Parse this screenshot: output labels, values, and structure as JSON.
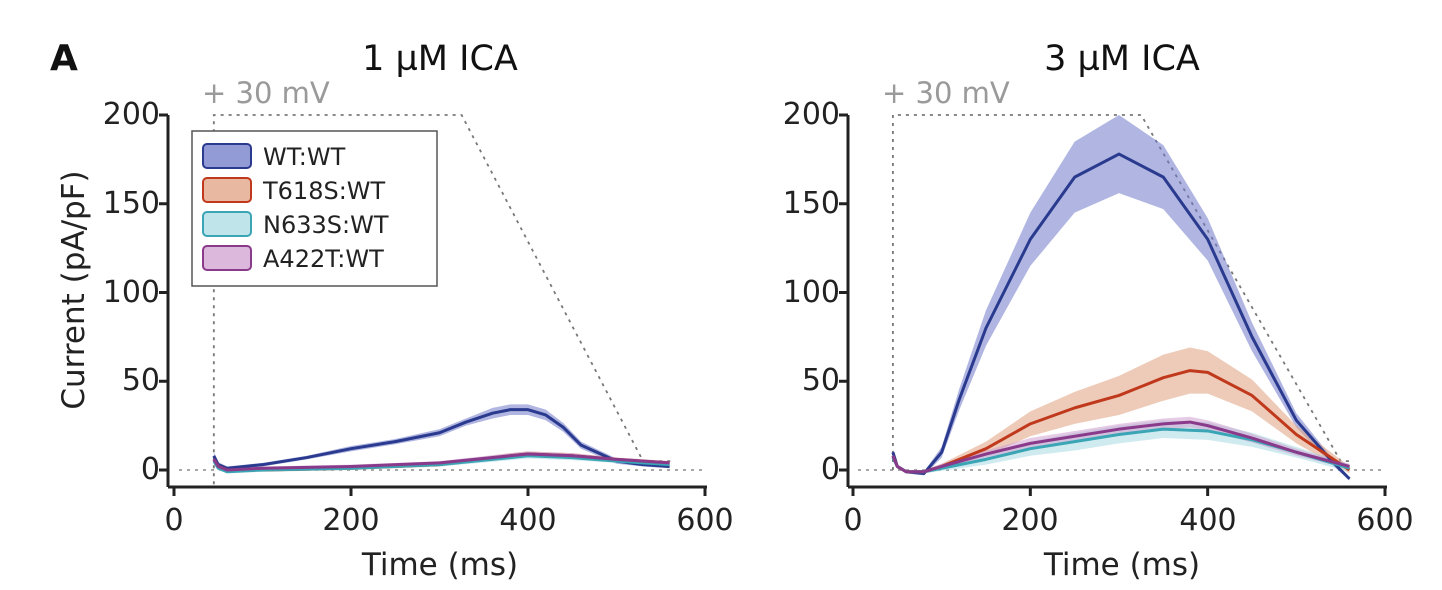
{
  "panel_label": "A",
  "chart_data": [
    {
      "type": "line",
      "title": "1 µM ICA",
      "xlabel": "Time (ms)",
      "ylabel": "Current (pA/pF)",
      "xlim": [
        0,
        600
      ],
      "ylim": [
        -8,
        200
      ],
      "xticks": [
        "0",
        "200",
        "400",
        "600"
      ],
      "yticks": [
        "0",
        "50",
        "100",
        "150",
        "200"
      ],
      "protocol_label": "+ 30 mV",
      "legend": {
        "entries": [
          "WT:WT",
          "T618S:WT",
          "N633S:WT",
          "A422T:WT"
        ],
        "position": "top-left"
      },
      "series": [
        {
          "name": "WT:WT",
          "color": "#2a3a8f",
          "fill": "#6f7ac8",
          "x": [
            45,
            50,
            60,
            80,
            100,
            150,
            200,
            250,
            300,
            330,
            360,
            380,
            400,
            420,
            440,
            460,
            500,
            530,
            560
          ],
          "y": [
            8,
            3,
            1,
            2,
            3,
            7,
            12,
            16,
            21,
            27,
            32,
            34,
            34,
            31,
            24,
            14,
            5,
            3,
            2
          ],
          "err": [
            2,
            1.5,
            1,
            1,
            1,
            1,
            1.5,
            1.5,
            2,
            2,
            3,
            3,
            3,
            3,
            2.5,
            2,
            1.5,
            1,
            1
          ]
        },
        {
          "name": "T618S:WT",
          "color": "#c0391c",
          "fill": "#e0a080",
          "x": [
            45,
            50,
            60,
            100,
            200,
            300,
            380,
            400,
            450,
            500,
            560
          ],
          "y": [
            6,
            2,
            0,
            0,
            1,
            3,
            8,
            9,
            8,
            6,
            4
          ],
          "err": [
            1.5,
            1,
            1,
            1,
            1,
            1,
            1.5,
            1.5,
            1.5,
            1,
            1
          ]
        },
        {
          "name": "N633S:WT",
          "color": "#3aa5b5",
          "fill": "#aadbe3",
          "x": [
            45,
            50,
            60,
            100,
            200,
            300,
            380,
            400,
            450,
            500,
            560
          ],
          "y": [
            5,
            1,
            -1,
            0,
            1,
            3,
            7,
            8,
            7,
            5,
            3
          ],
          "err": [
            1.5,
            1,
            1,
            1,
            1,
            1,
            1.5,
            1.5,
            1.5,
            1,
            1
          ]
        },
        {
          "name": "A422T:WT",
          "color": "#8a3a8a",
          "fill": "#cfa0d0",
          "x": [
            45,
            50,
            60,
            100,
            200,
            300,
            380,
            400,
            450,
            500,
            560
          ],
          "y": [
            6,
            2,
            0,
            1,
            2,
            4,
            8,
            9,
            8,
            6,
            4
          ],
          "err": [
            1.5,
            1,
            1,
            1,
            1,
            1,
            1.5,
            1.5,
            1.5,
            1,
            1
          ]
        }
      ]
    },
    {
      "type": "line",
      "title": "3 µM ICA",
      "xlabel": "Time (ms)",
      "ylabel": "",
      "xlim": [
        0,
        600
      ],
      "ylim": [
        -8,
        200
      ],
      "xticks": [
        "0",
        "200",
        "400",
        "600"
      ],
      "yticks": [
        "0",
        "50",
        "100",
        "150",
        "200"
      ],
      "protocol_label": "+ 30 mV",
      "series": [
        {
          "name": "WT:WT",
          "color": "#2a3a8f",
          "fill": "#6f7ac8",
          "x": [
            45,
            50,
            60,
            80,
            100,
            120,
            150,
            200,
            250,
            300,
            350,
            400,
            450,
            500,
            540,
            560
          ],
          "y": [
            10,
            2,
            -1,
            -2,
            10,
            40,
            80,
            130,
            165,
            178,
            165,
            130,
            75,
            28,
            5,
            -5
          ],
          "err": [
            2,
            1,
            1,
            1,
            3,
            6,
            10,
            15,
            20,
            22,
            18,
            12,
            8,
            4,
            2,
            1
          ]
        },
        {
          "name": "T618S:WT",
          "color": "#c0391c",
          "fill": "#e0a080",
          "x": [
            45,
            50,
            60,
            80,
            100,
            150,
            200,
            250,
            300,
            350,
            380,
            400,
            450,
            500,
            560
          ],
          "y": [
            8,
            2,
            -1,
            -1,
            2,
            12,
            26,
            35,
            42,
            52,
            56,
            55,
            42,
            20,
            0
          ],
          "err": [
            1.5,
            1,
            1,
            1,
            1.5,
            4,
            7,
            9,
            11,
            13,
            13,
            12,
            9,
            5,
            2
          ]
        },
        {
          "name": "N633S:WT",
          "color": "#3aa5b5",
          "fill": "#aadbe3",
          "x": [
            45,
            50,
            60,
            80,
            100,
            150,
            200,
            250,
            300,
            350,
            400,
            450,
            500,
            560
          ],
          "y": [
            7,
            2,
            -1,
            -1,
            1,
            6,
            12,
            16,
            20,
            23,
            22,
            17,
            10,
            1
          ],
          "err": [
            1.5,
            1,
            1,
            1,
            1.5,
            3,
            4,
            5,
            5,
            5,
            5,
            4,
            3,
            2
          ]
        },
        {
          "name": "A422T:WT",
          "color": "#8a3a8a",
          "fill": "#cfa0d0",
          "x": [
            45,
            50,
            60,
            80,
            100,
            150,
            200,
            250,
            300,
            350,
            380,
            400,
            450,
            500,
            560
          ],
          "y": [
            8,
            2,
            -1,
            -1,
            2,
            9,
            15,
            19,
            23,
            26,
            27,
            25,
            18,
            10,
            2
          ],
          "err": [
            1.5,
            1,
            1,
            1,
            1.5,
            2,
            3,
            3,
            3,
            3,
            3,
            3,
            2.5,
            2,
            1.5
          ]
        }
      ]
    }
  ]
}
